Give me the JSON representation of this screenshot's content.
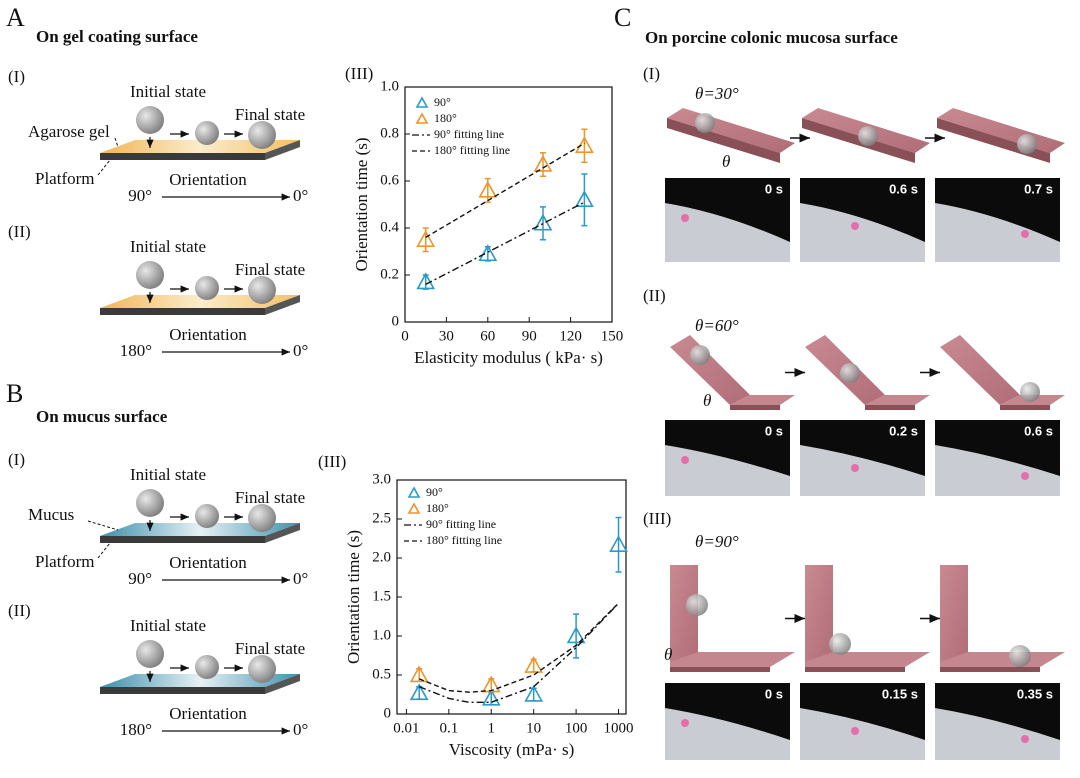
{
  "panels": {
    "A": {
      "letter": "A",
      "title": "On gel coating surface"
    },
    "B": {
      "letter": "B",
      "title": "On mucus surface"
    },
    "C": {
      "letter": "C",
      "title": "On porcine colonic mucosa surface"
    }
  },
  "diagrams": [
    {
      "roman": "(I)",
      "initial": "Initial state",
      "final": "Final state",
      "surface": "Agarose gel",
      "platform": "Platform",
      "from": "90°",
      "arrow": "Orientation",
      "to": "0°"
    },
    {
      "roman": "(II)",
      "initial": "Initial state",
      "final": "Final state",
      "from": "180°",
      "arrow": "Orientation",
      "to": "0°"
    },
    {
      "roman": "(I)",
      "initial": "Initial state",
      "final": "Final state",
      "surface": "Mucus",
      "platform": "Platform",
      "from": "90°",
      "arrow": "Orientation",
      "to": "0°"
    },
    {
      "roman": "(II)",
      "initial": "Initial state",
      "final": "Final state",
      "from": "180°",
      "arrow": "Orientation",
      "to": "0°"
    }
  ],
  "chart_data": [
    {
      "type": "scatter",
      "annotation": "(III)",
      "x_label": "Elasticity modulus ( kPa· s)",
      "y_label": "Orientation time (s)",
      "xlim": [
        0,
        150
      ],
      "xticks": [
        0,
        30,
        60,
        90,
        120,
        150
      ],
      "ylim": [
        0,
        1.0
      ],
      "yticks": [
        0,
        0.2,
        0.4,
        0.6,
        0.8,
        {
          "value": 1,
          "label": "1.0"
        }
      ],
      "series": [
        {
          "name": "90°",
          "color": "#2a9ac9",
          "style": "marker",
          "x": [
            15,
            60,
            100,
            130
          ],
          "values": [
            0.17,
            0.29,
            0.42,
            0.52
          ],
          "errors": [
            0.03,
            0.03,
            0.07,
            0.11
          ]
        },
        {
          "name": "180°",
          "color": "#f0932b",
          "style": "marker",
          "x": [
            15,
            60,
            100,
            130
          ],
          "values": [
            0.35,
            0.56,
            0.67,
            0.75
          ],
          "errors": [
            0.05,
            0.05,
            0.05,
            0.07
          ]
        },
        {
          "name": "90° fitting line",
          "color": "#111111",
          "style": "dashdot",
          "x": [
            15,
            130
          ],
          "values": [
            0.16,
            0.51
          ]
        },
        {
          "name": "180° fitting line",
          "color": "#111111",
          "style": "dashed",
          "x": [
            15,
            130
          ],
          "values": [
            0.36,
            0.76
          ]
        }
      ]
    },
    {
      "type": "scatter",
      "annotation": "(III)",
      "x_label": "Viscosity (mPa· s)",
      "y_label": "Orientation time (s)",
      "xscale": "log",
      "xlim": [
        0.006,
        1500
      ],
      "xticks": [
        0.01,
        0.1,
        1,
        10,
        100,
        1000
      ],
      "ylim": [
        0,
        3.0
      ],
      "yticks": [
        0,
        0.5,
        {
          "value": 1,
          "label": "1.0"
        },
        1.5,
        {
          "value": 2,
          "label": "2.0"
        },
        2.5,
        {
          "value": 3,
          "label": "3.0"
        }
      ],
      "series": [
        {
          "name": "90°",
          "color": "#2a9ac9",
          "style": "marker",
          "x": [
            0.02,
            1,
            10,
            100,
            1000
          ],
          "values": [
            0.27,
            0.2,
            0.25,
            1.0,
            2.17
          ],
          "errors": [
            0.08,
            0.08,
            0.08,
            0.28,
            0.35
          ]
        },
        {
          "name": "180°",
          "color": "#f0932b",
          "style": "marker",
          "x": [
            0.02,
            1,
            10
          ],
          "values": [
            0.5,
            0.37,
            0.62
          ],
          "errors": [
            0.08,
            0.08,
            0.08
          ]
        },
        {
          "name": "90° fitting line",
          "color": "#111111",
          "style": "dashdot",
          "x": [
            0.02,
            0.1,
            0.3,
            1,
            10,
            100,
            1000
          ],
          "values": [
            0.35,
            0.2,
            0.15,
            0.15,
            0.35,
            0.85,
            1.42
          ]
        },
        {
          "name": "180° fitting line",
          "color": "#111111",
          "style": "dashed",
          "x": [
            0.02,
            0.1,
            0.3,
            1,
            10,
            100,
            1000
          ],
          "values": [
            0.45,
            0.3,
            0.28,
            0.3,
            0.5,
            0.88,
            1.42
          ]
        }
      ]
    }
  ],
  "photos": {
    "rows": [
      {
        "roman": "(I)",
        "angle": "θ=30°",
        "theta": "θ",
        "times": [
          "0 s",
          "0.6 s",
          "0.7 s"
        ]
      },
      {
        "roman": "(II)",
        "angle": "θ=60°",
        "theta": "θ",
        "times": [
          "0 s",
          "0.2 s",
          "0.6 s"
        ]
      },
      {
        "roman": "(III)",
        "angle": "θ=90°",
        "theta": "θ",
        "times": [
          "0 s",
          "0.15 s",
          "0.35 s"
        ]
      }
    ]
  }
}
